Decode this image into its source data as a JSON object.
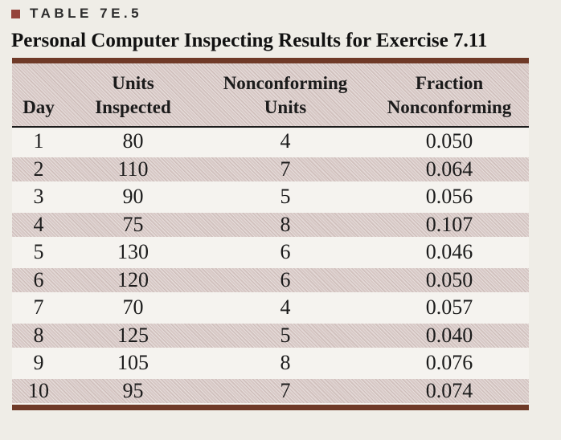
{
  "title": {
    "label": "TABLE 7E.5"
  },
  "subtitle": "Personal Computer Inspecting Results for Exercise 7.11",
  "table": {
    "headers": [
      {
        "line1": "",
        "line2": "Day"
      },
      {
        "line1": "Units",
        "line2": "Inspected"
      },
      {
        "line1": "Nonconforming",
        "line2": "Units"
      },
      {
        "line1": "Fraction",
        "line2": "Nonconforming"
      }
    ],
    "rows": [
      [
        "1",
        "80",
        "4",
        "0.050"
      ],
      [
        "2",
        "110",
        "7",
        "0.064"
      ],
      [
        "3",
        "90",
        "5",
        "0.056"
      ],
      [
        "4",
        "75",
        "8",
        "0.107"
      ],
      [
        "5",
        "130",
        "6",
        "0.046"
      ],
      [
        "6",
        "120",
        "6",
        "0.050"
      ],
      [
        "7",
        "70",
        "4",
        "0.057"
      ],
      [
        "8",
        "125",
        "5",
        "0.040"
      ],
      [
        "9",
        "105",
        "8",
        "0.076"
      ],
      [
        "10",
        "95",
        "7",
        "0.074"
      ]
    ]
  },
  "colors": {
    "rule_brown": "#6f3a28",
    "header_underline": "#1c1c1c",
    "shaded_row": "#d7c8c5",
    "plain_row": "#f5f3ef",
    "bullet": "#94433a",
    "page_background": "#efede7",
    "text": "#1b1b1b",
    "title_text": "#2d2d2d"
  }
}
